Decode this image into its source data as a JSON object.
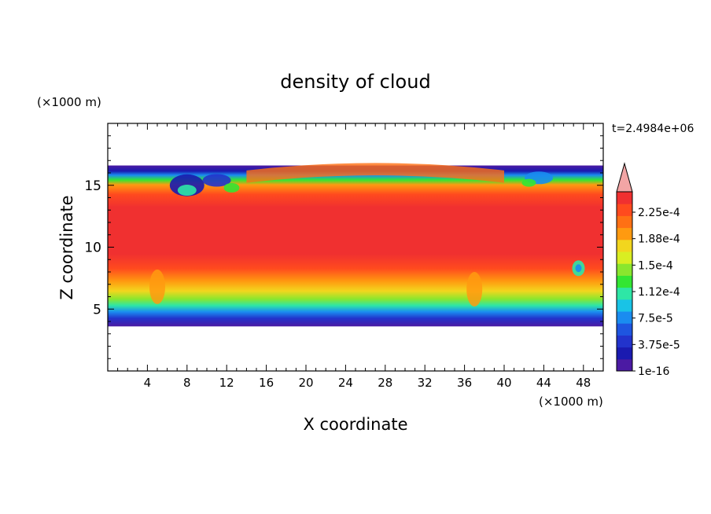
{
  "chart_data": {
    "type": "heatmap",
    "title": "density of cloud",
    "xlabel": "X coordinate",
    "ylabel": "Z coordinate",
    "x_unit": "(×1000 m)",
    "y_unit": "(×1000 m)",
    "time_label": "t=2.4984e+06",
    "xlim": [
      0,
      50
    ],
    "ylim": [
      0,
      20
    ],
    "x_ticks": [
      4,
      8,
      12,
      16,
      20,
      24,
      28,
      32,
      36,
      40,
      44,
      48
    ],
    "y_ticks": [
      5,
      10,
      15
    ],
    "colorbar": {
      "labels": [
        "2.25e-4",
        "1.88e-4",
        "1.5e-4",
        "1.12e-4",
        "7.5e-5",
        "3.75e-5",
        "1e-16"
      ],
      "colors": [
        "#4b1aa3",
        "#1a1ab0",
        "#2233cc",
        "#1e55e0",
        "#1a8cf0",
        "#19c3e6",
        "#2ee6a6",
        "#33e633",
        "#8ae62e",
        "#d9ee22",
        "#f2d61e",
        "#ff9a10",
        "#ff7014",
        "#ff4a1e",
        "#f03030"
      ],
      "extend_color": "#f2a5a5"
    },
    "cloud_band": {
      "base_km": 3.6,
      "top_km": 16.6,
      "core_bottom_km": 5.8,
      "core_top_km": 15.0
    }
  }
}
